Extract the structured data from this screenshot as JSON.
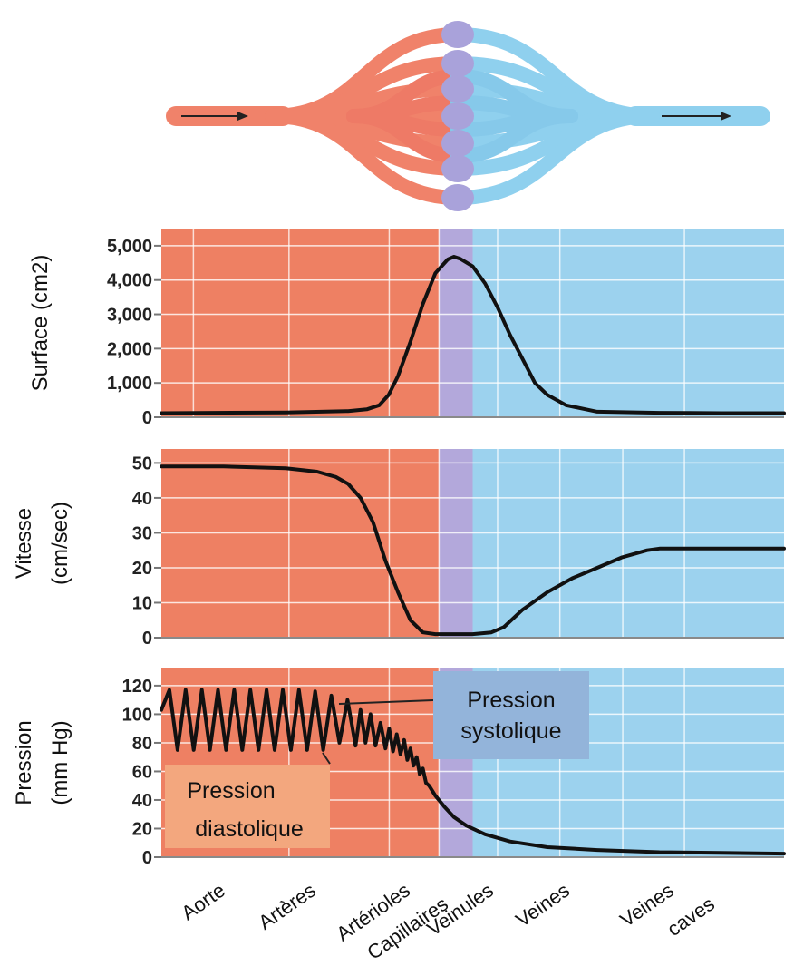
{
  "colors": {
    "arterial": "#EE8063",
    "capillary": "#B3A8DB",
    "venous": "#9CD2EE",
    "curve": "#111111",
    "grid": "#ffffff",
    "systolic_box": "#93B4DA",
    "diastolic_box": "#F3A77E"
  },
  "vessel_diagram": {
    "arterial_color": "#F0826A",
    "capillary_color": "#A9A2DA",
    "venous_color": "#8FD0EE",
    "arrow": "flow-arrow"
  },
  "categories": [
    "Aorte",
    "Artères",
    "Artérioles",
    "Capillaires",
    "Veinules",
    "Veines",
    "Veines caves"
  ],
  "category_lines": [
    [
      "Aorte"
    ],
    [
      "Artères"
    ],
    [
      "Artérioles"
    ],
    [
      "Capillaires"
    ],
    [
      "Veinules"
    ],
    [
      "Veines"
    ],
    [
      "Veines",
      "caves"
    ]
  ],
  "annotations": {
    "systolic": [
      "Pression",
      "systolique"
    ],
    "diastolic": [
      "Pression",
      "diastolique"
    ]
  },
  "chart_data": [
    {
      "type": "line",
      "ylabel": [
        "Surface (cm2)"
      ],
      "yticks": [
        "0",
        "1,000",
        "2,000",
        "3,000",
        "4,000",
        "5,000"
      ],
      "ylim": [
        0,
        5500
      ],
      "xlim": [
        0,
        100
      ],
      "regions": [
        {
          "from": 0,
          "to": 44.6,
          "color": "arterial"
        },
        {
          "from": 44.6,
          "to": 50.0,
          "color": "capillary"
        },
        {
          "from": 50.0,
          "to": 100,
          "color": "venous"
        }
      ],
      "x": [
        0,
        20,
        30,
        33,
        35,
        36.5,
        38,
        40,
        42,
        44,
        46,
        47,
        48,
        50,
        52,
        54,
        56,
        58,
        60,
        62,
        65,
        70,
        80,
        90,
        100
      ],
      "y": [
        120,
        140,
        180,
        230,
        350,
        650,
        1200,
        2200,
        3300,
        4200,
        4600,
        4680,
        4620,
        4400,
        3900,
        3200,
        2400,
        1700,
        1000,
        650,
        350,
        160,
        130,
        120,
        120
      ]
    },
    {
      "type": "line",
      "ylabel": [
        "Vitesse",
        "(cm/sec)"
      ],
      "yticks": [
        "0",
        "10",
        "20",
        "30",
        "40",
        "50"
      ],
      "ylim": [
        0,
        54
      ],
      "xlim": [
        0,
        100
      ],
      "regions": [
        {
          "from": 0,
          "to": 44.6,
          "color": "arterial"
        },
        {
          "from": 44.6,
          "to": 50.0,
          "color": "capillary"
        },
        {
          "from": 50.0,
          "to": 100,
          "color": "venous"
        }
      ],
      "x": [
        0,
        10,
        20,
        25,
        28,
        30,
        32,
        34,
        36,
        38,
        40,
        42,
        44,
        46,
        50,
        53,
        55,
        58,
        62,
        66,
        70,
        74,
        78,
        80,
        85,
        90,
        100
      ],
      "y": [
        49,
        49,
        48.5,
        47.5,
        46,
        44,
        40,
        33,
        22,
        13,
        5,
        1.5,
        1,
        1,
        1,
        1.5,
        3,
        8,
        13,
        17,
        20,
        23,
        25,
        25.5,
        25.5,
        25.5,
        25.5
      ],
      "xticks": [
        "Aorte",
        "Artères",
        "Artérioles",
        "Capillaires",
        "Veinules",
        "Veines",
        "Veines caves"
      ]
    },
    {
      "type": "line",
      "ylabel": [
        "Pression",
        "(mm Hg)"
      ],
      "yticks": [
        "0",
        "20",
        "40",
        "60",
        "80",
        "100",
        "120"
      ],
      "ylim": [
        0,
        132
      ],
      "xlim": [
        0,
        100
      ],
      "regions": [
        {
          "from": 0,
          "to": 44.6,
          "color": "arterial"
        },
        {
          "from": 44.6,
          "to": 50.0,
          "color": "capillary"
        },
        {
          "from": 50.0,
          "to": 100,
          "color": "venous"
        }
      ],
      "series": [
        {
          "x": [
            0,
            1.3,
            2.6,
            3.9,
            5.2,
            6.5,
            7.8,
            9.1,
            10.4,
            11.7,
            13.0,
            14.3,
            15.6,
            16.9,
            18.2,
            19.5,
            20.8,
            22.1,
            23.4,
            24.7,
            26.0,
            27.3,
            28.6,
            29.9,
            31.2,
            32.0,
            32.8,
            33.6,
            34.4,
            35.2,
            36.0,
            36.6,
            37.2,
            37.8,
            38.4,
            39.0,
            39.5,
            40.0,
            40.5,
            41.0,
            41.5,
            42.0,
            42.5,
            43.0,
            44.0,
            45.5,
            47,
            49,
            52,
            56,
            62,
            70,
            80,
            90,
            100
          ],
          "y": [
            103,
            117,
            75,
            117,
            75,
            117,
            75,
            117,
            75,
            117,
            75,
            117,
            75,
            117,
            75,
            117,
            75,
            117,
            75,
            116,
            75,
            113,
            80,
            110,
            78,
            103,
            80,
            100,
            78,
            94,
            76,
            90,
            74,
            86,
            72,
            82,
            68,
            76,
            64,
            70,
            58,
            62,
            52,
            50,
            43,
            35,
            28,
            22,
            16,
            11,
            7,
            5,
            3.5,
            3,
            2.5
          ]
        }
      ]
    }
  ]
}
